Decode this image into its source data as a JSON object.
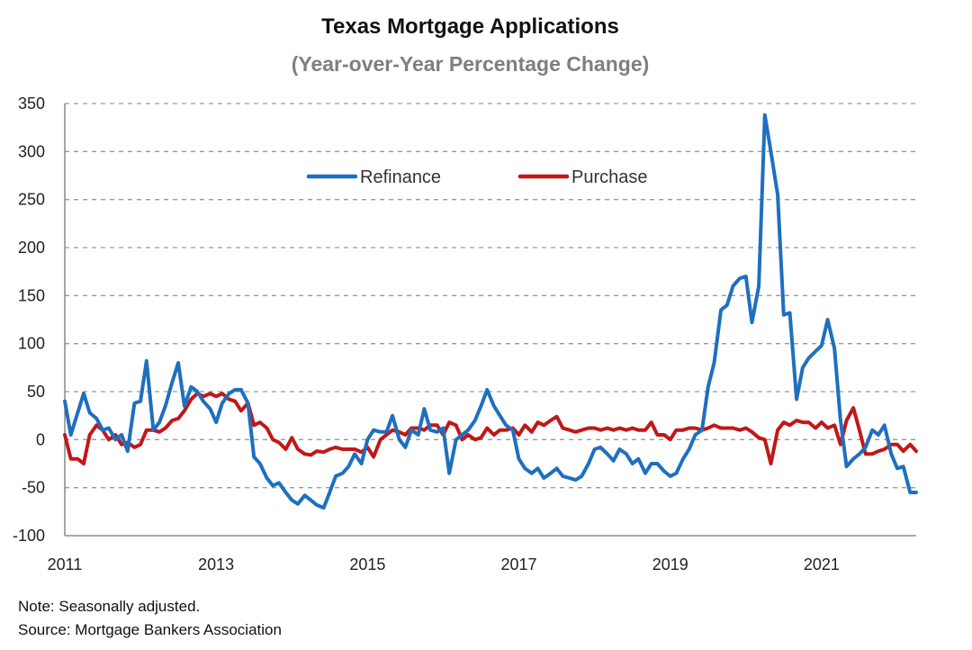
{
  "chart_data": {
    "type": "line",
    "title": "Texas Mortgage Applications",
    "subtitle": "(Year-over-Year Percentage Change)",
    "xlabel": "",
    "ylabel": "",
    "x_range": [
      2011.0,
      2022.25
    ],
    "ylim": [
      -100,
      350
    ],
    "y_ticks": [
      350,
      300,
      250,
      200,
      150,
      100,
      50,
      0,
      -50,
      -100
    ],
    "x_ticks": [
      2011,
      2013,
      2015,
      2017,
      2019,
      2021
    ],
    "grid": "horizontal dashed",
    "legend_position": "top-center",
    "series": [
      {
        "name": "Refinance",
        "color": "#1f6fbf",
        "points": [
          [
            2011.0,
            40
          ],
          [
            2011.08,
            5
          ],
          [
            2011.17,
            28
          ],
          [
            2011.25,
            48
          ],
          [
            2011.33,
            28
          ],
          [
            2011.42,
            22
          ],
          [
            2011.5,
            10
          ],
          [
            2011.58,
            12
          ],
          [
            2011.67,
            0
          ],
          [
            2011.75,
            5
          ],
          [
            2011.83,
            -12
          ],
          [
            2011.92,
            38
          ],
          [
            2012.0,
            40
          ],
          [
            2012.08,
            82
          ],
          [
            2012.17,
            10
          ],
          [
            2012.25,
            18
          ],
          [
            2012.33,
            35
          ],
          [
            2012.42,
            60
          ],
          [
            2012.5,
            80
          ],
          [
            2012.58,
            35
          ],
          [
            2012.67,
            55
          ],
          [
            2012.75,
            50
          ],
          [
            2012.83,
            40
          ],
          [
            2012.92,
            32
          ],
          [
            2013.0,
            18
          ],
          [
            2013.08,
            38
          ],
          [
            2013.17,
            48
          ],
          [
            2013.25,
            52
          ],
          [
            2013.33,
            52
          ],
          [
            2013.42,
            38
          ],
          [
            2013.5,
            -18
          ],
          [
            2013.58,
            -25
          ],
          [
            2013.67,
            -40
          ],
          [
            2013.75,
            -48
          ],
          [
            2013.83,
            -45
          ],
          [
            2013.92,
            -55
          ],
          [
            2014.0,
            -63
          ],
          [
            2014.08,
            -67
          ],
          [
            2014.17,
            -58
          ],
          [
            2014.25,
            -63
          ],
          [
            2014.33,
            -68
          ],
          [
            2014.42,
            -71
          ],
          [
            2014.5,
            -55
          ],
          [
            2014.58,
            -38
          ],
          [
            2014.67,
            -35
          ],
          [
            2014.75,
            -28
          ],
          [
            2014.83,
            -15
          ],
          [
            2014.92,
            -25
          ],
          [
            2015.0,
            0
          ],
          [
            2015.08,
            10
          ],
          [
            2015.17,
            8
          ],
          [
            2015.25,
            8
          ],
          [
            2015.33,
            25
          ],
          [
            2015.42,
            0
          ],
          [
            2015.5,
            -8
          ],
          [
            2015.58,
            10
          ],
          [
            2015.67,
            5
          ],
          [
            2015.75,
            32
          ],
          [
            2015.83,
            10
          ],
          [
            2015.92,
            8
          ],
          [
            2016.0,
            12
          ],
          [
            2016.08,
            -35
          ],
          [
            2016.17,
            0
          ],
          [
            2016.25,
            5
          ],
          [
            2016.33,
            10
          ],
          [
            2016.42,
            20
          ],
          [
            2016.5,
            35
          ],
          [
            2016.58,
            52
          ],
          [
            2016.67,
            35
          ],
          [
            2016.75,
            25
          ],
          [
            2016.83,
            15
          ],
          [
            2016.92,
            10
          ],
          [
            2017.0,
            -20
          ],
          [
            2017.08,
            -30
          ],
          [
            2017.17,
            -35
          ],
          [
            2017.25,
            -30
          ],
          [
            2017.33,
            -40
          ],
          [
            2017.42,
            -35
          ],
          [
            2017.5,
            -30
          ],
          [
            2017.58,
            -38
          ],
          [
            2017.67,
            -40
          ],
          [
            2017.75,
            -42
          ],
          [
            2017.83,
            -38
          ],
          [
            2017.92,
            -25
          ],
          [
            2018.0,
            -10
          ],
          [
            2018.08,
            -8
          ],
          [
            2018.17,
            -15
          ],
          [
            2018.25,
            -22
          ],
          [
            2018.33,
            -10
          ],
          [
            2018.42,
            -15
          ],
          [
            2018.5,
            -25
          ],
          [
            2018.58,
            -20
          ],
          [
            2018.67,
            -35
          ],
          [
            2018.75,
            -25
          ],
          [
            2018.83,
            -25
          ],
          [
            2018.92,
            -33
          ],
          [
            2019.0,
            -38
          ],
          [
            2019.08,
            -35
          ],
          [
            2019.17,
            -20
          ],
          [
            2019.25,
            -10
          ],
          [
            2019.33,
            5
          ],
          [
            2019.42,
            10
          ],
          [
            2019.5,
            55
          ],
          [
            2019.58,
            80
          ],
          [
            2019.67,
            135
          ],
          [
            2019.75,
            140
          ],
          [
            2019.83,
            160
          ],
          [
            2019.92,
            168
          ],
          [
            2020.0,
            170
          ],
          [
            2020.08,
            122
          ],
          [
            2020.17,
            160
          ],
          [
            2020.25,
            338
          ],
          [
            2020.33,
            300
          ],
          [
            2020.42,
            255
          ],
          [
            2020.5,
            130
          ],
          [
            2020.58,
            132
          ],
          [
            2020.67,
            42
          ],
          [
            2020.75,
            75
          ],
          [
            2020.83,
            85
          ],
          [
            2020.92,
            92
          ],
          [
            2021.0,
            98
          ],
          [
            2021.08,
            125
          ],
          [
            2021.17,
            95
          ],
          [
            2021.25,
            20
          ],
          [
            2021.33,
            -28
          ],
          [
            2021.42,
            -20
          ],
          [
            2021.5,
            -15
          ],
          [
            2021.58,
            -8
          ],
          [
            2021.67,
            10
          ],
          [
            2021.75,
            5
          ],
          [
            2021.83,
            15
          ],
          [
            2021.92,
            -15
          ],
          [
            2022.0,
            -30
          ],
          [
            2022.08,
            -28
          ],
          [
            2022.17,
            -55
          ],
          [
            2022.25,
            -55
          ]
        ]
      },
      {
        "name": "Purchase",
        "color": "#c01818",
        "points": [
          [
            2011.0,
            5
          ],
          [
            2011.08,
            -20
          ],
          [
            2011.17,
            -20
          ],
          [
            2011.25,
            -25
          ],
          [
            2011.33,
            5
          ],
          [
            2011.42,
            15
          ],
          [
            2011.5,
            10
          ],
          [
            2011.58,
            0
          ],
          [
            2011.67,
            5
          ],
          [
            2011.75,
            -5
          ],
          [
            2011.83,
            -3
          ],
          [
            2011.92,
            -8
          ],
          [
            2012.0,
            -5
          ],
          [
            2012.08,
            10
          ],
          [
            2012.17,
            10
          ],
          [
            2012.25,
            8
          ],
          [
            2012.33,
            12
          ],
          [
            2012.42,
            20
          ],
          [
            2012.5,
            22
          ],
          [
            2012.58,
            30
          ],
          [
            2012.67,
            42
          ],
          [
            2012.75,
            48
          ],
          [
            2012.83,
            45
          ],
          [
            2012.92,
            48
          ],
          [
            2013.0,
            45
          ],
          [
            2013.08,
            48
          ],
          [
            2013.17,
            42
          ],
          [
            2013.25,
            40
          ],
          [
            2013.33,
            30
          ],
          [
            2013.42,
            38
          ],
          [
            2013.5,
            15
          ],
          [
            2013.58,
            18
          ],
          [
            2013.67,
            12
          ],
          [
            2013.75,
            0
          ],
          [
            2013.83,
            -3
          ],
          [
            2013.92,
            -10
          ],
          [
            2014.0,
            2
          ],
          [
            2014.08,
            -10
          ],
          [
            2014.17,
            -15
          ],
          [
            2014.25,
            -16
          ],
          [
            2014.33,
            -12
          ],
          [
            2014.42,
            -13
          ],
          [
            2014.5,
            -10
          ],
          [
            2014.58,
            -8
          ],
          [
            2014.67,
            -10
          ],
          [
            2014.75,
            -10
          ],
          [
            2014.83,
            -10
          ],
          [
            2014.92,
            -13
          ],
          [
            2015.0,
            -8
          ],
          [
            2015.08,
            -18
          ],
          [
            2015.17,
            0
          ],
          [
            2015.25,
            5
          ],
          [
            2015.33,
            10
          ],
          [
            2015.42,
            8
          ],
          [
            2015.5,
            5
          ],
          [
            2015.58,
            12
          ],
          [
            2015.67,
            12
          ],
          [
            2015.75,
            10
          ],
          [
            2015.83,
            15
          ],
          [
            2015.92,
            15
          ],
          [
            2016.0,
            5
          ],
          [
            2016.08,
            18
          ],
          [
            2016.17,
            15
          ],
          [
            2016.25,
            0
          ],
          [
            2016.33,
            5
          ],
          [
            2016.42,
            0
          ],
          [
            2016.5,
            2
          ],
          [
            2016.58,
            12
          ],
          [
            2016.67,
            5
          ],
          [
            2016.75,
            10
          ],
          [
            2016.83,
            10
          ],
          [
            2016.92,
            12
          ],
          [
            2017.0,
            5
          ],
          [
            2017.08,
            15
          ],
          [
            2017.17,
            8
          ],
          [
            2017.25,
            18
          ],
          [
            2017.33,
            15
          ],
          [
            2017.42,
            20
          ],
          [
            2017.5,
            24
          ],
          [
            2017.58,
            12
          ],
          [
            2017.67,
            10
          ],
          [
            2017.75,
            8
          ],
          [
            2017.83,
            10
          ],
          [
            2017.92,
            12
          ],
          [
            2018.0,
            12
          ],
          [
            2018.08,
            10
          ],
          [
            2018.17,
            12
          ],
          [
            2018.25,
            10
          ],
          [
            2018.33,
            12
          ],
          [
            2018.42,
            10
          ],
          [
            2018.5,
            12
          ],
          [
            2018.58,
            10
          ],
          [
            2018.67,
            10
          ],
          [
            2018.75,
            18
          ],
          [
            2018.83,
            5
          ],
          [
            2018.92,
            5
          ],
          [
            2019.0,
            0
          ],
          [
            2019.08,
            10
          ],
          [
            2019.17,
            10
          ],
          [
            2019.25,
            12
          ],
          [
            2019.33,
            12
          ],
          [
            2019.42,
            10
          ],
          [
            2019.5,
            12
          ],
          [
            2019.58,
            15
          ],
          [
            2019.67,
            12
          ],
          [
            2019.75,
            12
          ],
          [
            2019.83,
            12
          ],
          [
            2019.92,
            10
          ],
          [
            2020.0,
            12
          ],
          [
            2020.08,
            8
          ],
          [
            2020.17,
            2
          ],
          [
            2020.25,
            0
          ],
          [
            2020.33,
            -25
          ],
          [
            2020.42,
            10
          ],
          [
            2020.5,
            18
          ],
          [
            2020.58,
            15
          ],
          [
            2020.67,
            20
          ],
          [
            2020.75,
            18
          ],
          [
            2020.83,
            18
          ],
          [
            2020.92,
            12
          ],
          [
            2021.0,
            18
          ],
          [
            2021.08,
            12
          ],
          [
            2021.17,
            15
          ],
          [
            2021.25,
            -5
          ],
          [
            2021.33,
            20
          ],
          [
            2021.42,
            33
          ],
          [
            2021.5,
            10
          ],
          [
            2021.58,
            -15
          ],
          [
            2021.67,
            -15
          ],
          [
            2021.75,
            -12
          ],
          [
            2021.83,
            -10
          ],
          [
            2021.92,
            -5
          ],
          [
            2022.0,
            -5
          ],
          [
            2022.08,
            -12
          ],
          [
            2022.17,
            -5
          ],
          [
            2022.25,
            -12
          ]
        ]
      }
    ]
  },
  "footnotes": {
    "note": "Note: Seasonally adjusted.",
    "source": "Source: Mortgage Bankers Association"
  }
}
